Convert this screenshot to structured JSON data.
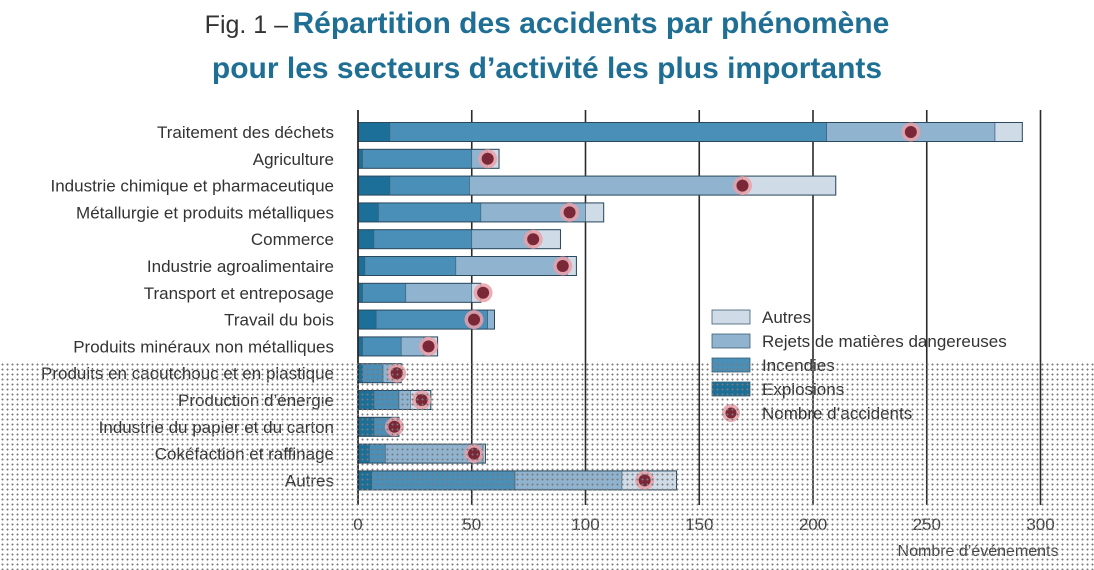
{
  "title": {
    "prefix": "Fig. 1 –",
    "line1": "Répartition des accidents par phénomène",
    "line2": "pour les secteurs d’activité les plus importants"
  },
  "colors": {
    "explosions": "#1c6f98",
    "incendies": "#4a8fb8",
    "rejets": "#90b3cf",
    "autres": "#cfdbe6",
    "accidents": "#7a2838",
    "accidents_halo": "#e9a0a8"
  },
  "chart_data": {
    "type": "bar",
    "orientation": "horizontal",
    "stacked": true,
    "categories": [
      "Traitement des déchets",
      "Agriculture",
      "Industrie chimique et pharmaceutique",
      "Métallurgie et produits métalliques",
      "Commerce",
      "Industrie agroalimentaire",
      "Transport et entreposage",
      "Travail du bois",
      "Produits minéraux non métalliques",
      "Produits en caoutchouc et en plastique",
      "Production d’énergie",
      "Industrie du papier et du carton",
      "Cokéfaction et raffinage",
      "Autres"
    ],
    "series": [
      {
        "name": "Explosions",
        "color_key": "explosions",
        "values": [
          14,
          2,
          14,
          9,
          7,
          3,
          2,
          8,
          2,
          2,
          7,
          7,
          5,
          6
        ]
      },
      {
        "name": "Incendies",
        "color_key": "incendies",
        "values": [
          192,
          48,
          35,
          45,
          43,
          40,
          19,
          49,
          17,
          9,
          11,
          7,
          7,
          63
        ]
      },
      {
        "name": "Rejets de matières dangereuses",
        "color_key": "rejets",
        "values": [
          74,
          7,
          120,
          46,
          26,
          49,
          29,
          3,
          10,
          5,
          5,
          2,
          43,
          47
        ]
      },
      {
        "name": "Autres",
        "color_key": "autres",
        "values": [
          12,
          5,
          41,
          8,
          13,
          4,
          4,
          0,
          6,
          3,
          9,
          2,
          1,
          24
        ]
      }
    ],
    "accidents": {
      "name": "Nombre d’accidents",
      "values": [
        243,
        57,
        169,
        93,
        77,
        90,
        55,
        51,
        31,
        17,
        28,
        16,
        51,
        126
      ]
    },
    "xlabel": "Nombre d’événements",
    "xlim": [
      0,
      300
    ],
    "xticks": [
      0,
      50,
      100,
      150,
      200,
      250,
      300
    ],
    "grid": true,
    "legend": {
      "placement": "bottom-right",
      "entries": [
        {
          "label": "Autres",
          "color_key": "autres",
          "kind": "bar"
        },
        {
          "label": "Rejets de matières dangereuses",
          "color_key": "rejets",
          "kind": "bar"
        },
        {
          "label": "Incendies",
          "color_key": "incendies",
          "kind": "bar"
        },
        {
          "label": "Explosions",
          "color_key": "explosions",
          "kind": "bar"
        },
        {
          "label": "Nombre d’accidents",
          "color_key": "accidents",
          "kind": "dot"
        }
      ]
    }
  }
}
